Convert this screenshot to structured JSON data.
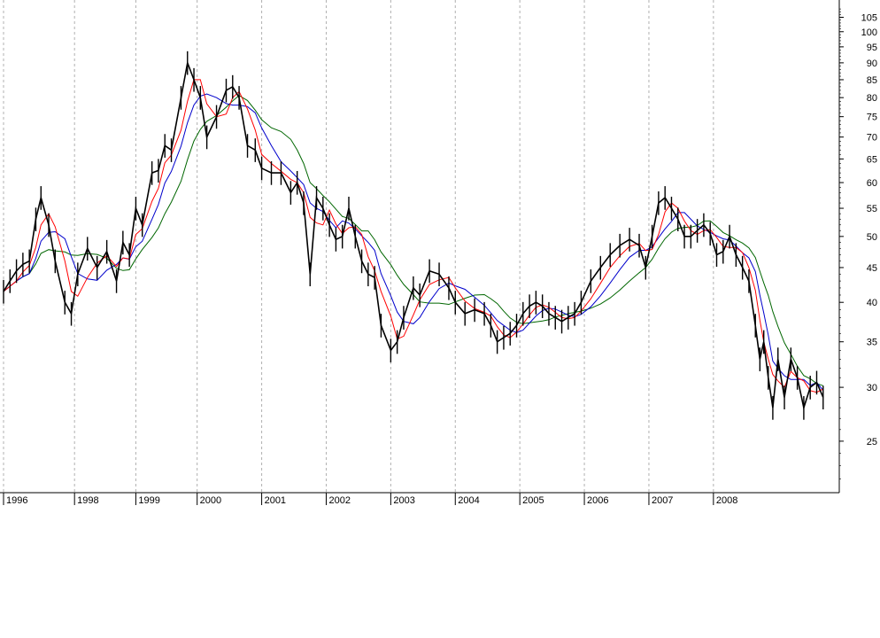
{
  "chart_data": {
    "type": "line",
    "title": "",
    "xlabel": "",
    "ylabel": "",
    "y_scale": "log",
    "ylim": [
      21,
      110
    ],
    "xlim": [
      1996.0,
      2008.95
    ],
    "y_ticks": [
      25,
      30,
      35,
      40,
      45,
      50,
      55,
      60,
      65,
      70,
      75,
      80,
      85,
      90,
      95,
      100,
      105
    ],
    "x_ticks": [
      {
        "label": "1996",
        "x": 1996.0
      },
      {
        "label": "1998",
        "x": 1997.1
      },
      {
        "label": "1999",
        "x": 1998.05
      },
      {
        "label": "2000",
        "x": 1999.0
      },
      {
        "label": "2001",
        "x": 2000.0
      },
      {
        "label": "2002",
        "x": 2001.0
      },
      {
        "label": "2003",
        "x": 2002.0
      },
      {
        "label": "2004",
        "x": 2003.0
      },
      {
        "label": "2005",
        "x": 2004.0
      },
      {
        "label": "2006",
        "x": 2005.0
      },
      {
        "label": "2007",
        "x": 2006.0
      },
      {
        "label": "2008",
        "x": 2007.0
      }
    ],
    "grid": {
      "vertical": "dashed",
      "horizontal": false
    },
    "legend": "none",
    "series": [
      {
        "color": "#000000",
        "points": [
          [
            1996.0,
            41.5
          ],
          [
            1996.1,
            43.0
          ],
          [
            1996.2,
            44.5
          ],
          [
            1996.3,
            45.5
          ],
          [
            1996.4,
            46.0
          ],
          [
            1996.5,
            53.0
          ],
          [
            1996.58,
            57.0
          ],
          [
            1996.7,
            52.0
          ],
          [
            1996.8,
            46.0
          ],
          [
            1996.95,
            40.0
          ],
          [
            1997.05,
            38.5
          ],
          [
            1997.15,
            44.0
          ],
          [
            1997.3,
            48.0
          ],
          [
            1997.45,
            45.0
          ],
          [
            1997.6,
            47.5
          ],
          [
            1997.75,
            43.0
          ],
          [
            1997.85,
            49.0
          ],
          [
            1997.95,
            47.0
          ],
          [
            1998.05,
            55.0
          ],
          [
            1998.15,
            52.0
          ],
          [
            1998.3,
            62.0
          ],
          [
            1998.4,
            62.5
          ],
          [
            1998.5,
            68.0
          ],
          [
            1998.6,
            67.0
          ],
          [
            1998.75,
            80.0
          ],
          [
            1998.85,
            90.0
          ],
          [
            1998.95,
            85.0
          ],
          [
            1999.05,
            80.0
          ],
          [
            1999.15,
            70.0
          ],
          [
            1999.3,
            75.0
          ],
          [
            1999.45,
            82.0
          ],
          [
            1999.55,
            83.0
          ],
          [
            1999.65,
            80.0
          ],
          [
            1999.78,
            68.0
          ],
          [
            1999.9,
            67.0
          ],
          [
            2000.0,
            63.0
          ],
          [
            2000.15,
            62.0
          ],
          [
            2000.3,
            62.0
          ],
          [
            2000.45,
            58.0
          ],
          [
            2000.55,
            60.0
          ],
          [
            2000.65,
            56.0
          ],
          [
            2000.75,
            44.0
          ],
          [
            2000.85,
            57.0
          ],
          [
            2000.95,
            55.0
          ],
          [
            2001.05,
            52.0
          ],
          [
            2001.15,
            49.5
          ],
          [
            2001.25,
            50.0
          ],
          [
            2001.35,
            55.0
          ],
          [
            2001.45,
            50.0
          ],
          [
            2001.55,
            46.0
          ],
          [
            2001.65,
            44.0
          ],
          [
            2001.75,
            43.5
          ],
          [
            2001.85,
            37.0
          ],
          [
            2002.0,
            34.0
          ],
          [
            2002.1,
            35.0
          ],
          [
            2002.2,
            38.0
          ],
          [
            2002.35,
            42.0
          ],
          [
            2002.45,
            41.0
          ],
          [
            2002.6,
            44.5
          ],
          [
            2002.75,
            44.0
          ],
          [
            2002.9,
            42.0
          ],
          [
            2003.0,
            40.0
          ],
          [
            2003.15,
            38.5
          ],
          [
            2003.3,
            39.0
          ],
          [
            2003.45,
            38.5
          ],
          [
            2003.55,
            37.0
          ],
          [
            2003.65,
            35.0
          ],
          [
            2003.75,
            35.5
          ],
          [
            2003.85,
            36.0
          ],
          [
            2003.95,
            37.0
          ],
          [
            2004.05,
            38.5
          ],
          [
            2004.15,
            39.5
          ],
          [
            2004.25,
            40.0
          ],
          [
            2004.35,
            39.5
          ],
          [
            2004.45,
            38.5
          ],
          [
            2004.55,
            38.0
          ],
          [
            2004.65,
            37.5
          ],
          [
            2004.75,
            38.0
          ],
          [
            2004.85,
            38.5
          ],
          [
            2004.95,
            40.0
          ],
          [
            2005.1,
            43.0
          ],
          [
            2005.25,
            45.0
          ],
          [
            2005.4,
            47.0
          ],
          [
            2005.55,
            48.5
          ],
          [
            2005.7,
            49.5
          ],
          [
            2005.85,
            48.5
          ],
          [
            2005.95,
            45.0
          ],
          [
            2006.05,
            50.0
          ],
          [
            2006.15,
            56.0
          ],
          [
            2006.25,
            57.0
          ],
          [
            2006.35,
            55.0
          ],
          [
            2006.45,
            53.0
          ],
          [
            2006.55,
            50.0
          ],
          [
            2006.65,
            50.0
          ],
          [
            2006.75,
            51.0
          ],
          [
            2006.85,
            52.0
          ],
          [
            2006.95,
            50.5
          ],
          [
            2007.05,
            47.0
          ],
          [
            2007.15,
            47.5
          ],
          [
            2007.25,
            50.0
          ],
          [
            2007.35,
            47.0
          ],
          [
            2007.45,
            45.0
          ],
          [
            2007.55,
            43.0
          ],
          [
            2007.65,
            37.0
          ],
          [
            2007.72,
            33.0
          ],
          [
            2007.78,
            35.0
          ],
          [
            2007.85,
            31.0
          ],
          [
            2007.92,
            28.0
          ],
          [
            2008.0,
            33.0
          ],
          [
            2008.1,
            29.0
          ],
          [
            2008.2,
            33.0
          ],
          [
            2008.3,
            31.0
          ],
          [
            2008.4,
            28.0
          ],
          [
            2008.5,
            30.0
          ],
          [
            2008.6,
            30.5
          ],
          [
            2008.7,
            29.0
          ]
        ]
      },
      {
        "color": "#ff0000",
        "smoothing": 3
      },
      {
        "color": "#0000cc",
        "smoothing": 5
      },
      {
        "color": "#006600",
        "smoothing": 9
      }
    ]
  }
}
